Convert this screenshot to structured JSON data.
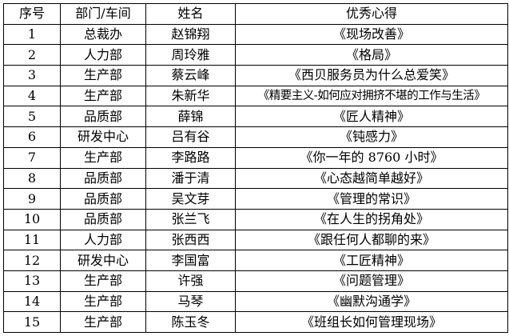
{
  "table": {
    "headers": [
      "序号",
      "部门/车间",
      "姓名",
      "优秀心得"
    ],
    "rows": [
      [
        "1",
        "总裁办",
        "赵锦翔",
        "《现场改善》"
      ],
      [
        "2",
        "人力部",
        "周玲雅",
        "《格局》"
      ],
      [
        "3",
        "生产部",
        "蔡云峰",
        "《西贝服务员为什么总爱笑》"
      ],
      [
        "4",
        "生产部",
        "朱新华",
        "《精要主义-如何应对拥挤不堪的工作与生活》"
      ],
      [
        "5",
        "品质部",
        "薛锦",
        "《匠人精神》"
      ],
      [
        "6",
        "研发中心",
        "吕有谷",
        "《钝感力》"
      ],
      [
        "7",
        "生产部",
        "李路路",
        "《你一年的 8760 小时》"
      ],
      [
        "8",
        "品质部",
        "潘于清",
        "《心态越简单越好》"
      ],
      [
        "9",
        "品质部",
        "吴文芽",
        "《管理的常识》"
      ],
      [
        "10",
        "品质部",
        "张兰飞",
        "《在人生的拐角处》"
      ],
      [
        "11",
        "人力部",
        "张西西",
        "《跟任何人都聊的来》"
      ],
      [
        "12",
        "研发中心",
        "李国富",
        "《工匠精神》"
      ],
      [
        "13",
        "生产部",
        "许强",
        "《问题管理》"
      ],
      [
        "14",
        "生产部",
        "马琴",
        "《幽默沟通学》"
      ],
      [
        "15",
        "生产部",
        "陈玉冬",
        "《班组长如何管理现场》"
      ]
    ]
  }
}
